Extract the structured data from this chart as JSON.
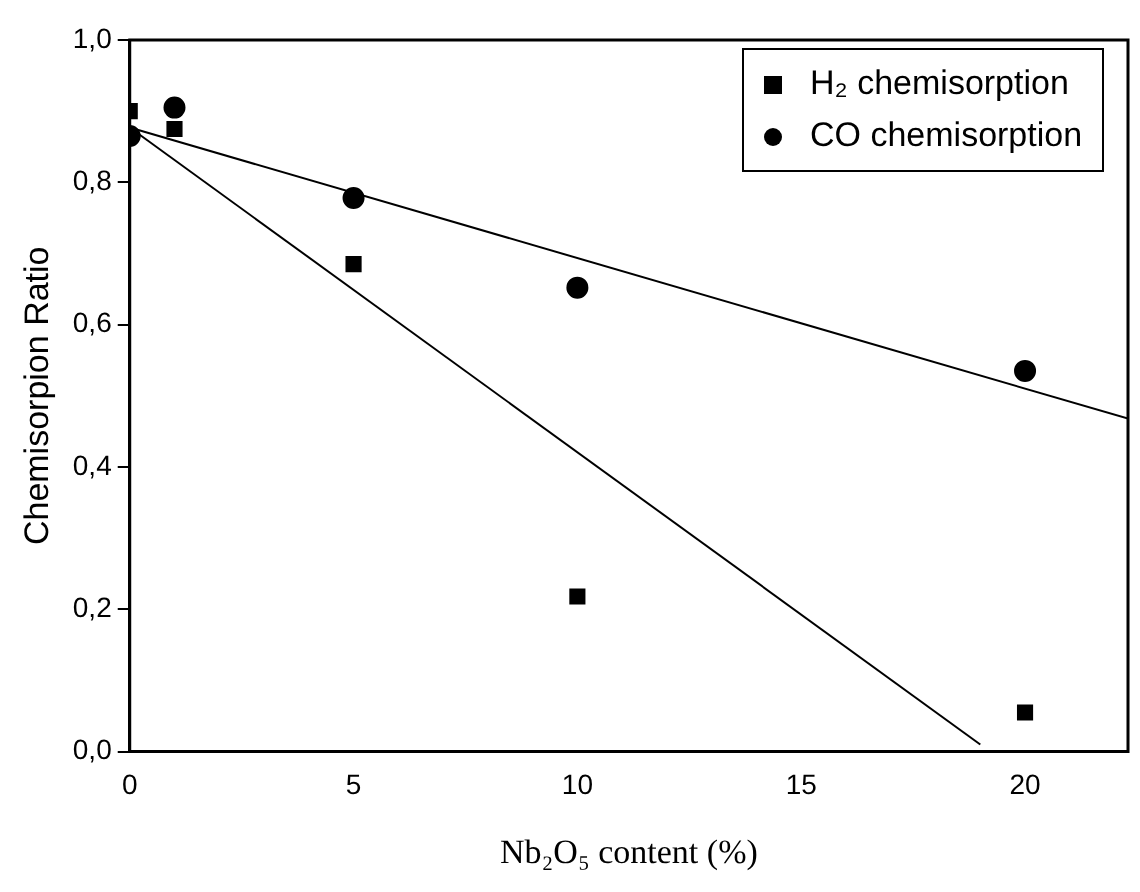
{
  "chart_data": {
    "type": "scatter",
    "xlabel": "Nb₂O₅ content (%)",
    "ylabel": "Chemisorpion Ratio",
    "xlim": [
      0,
      22.3
    ],
    "xticks": [
      0,
      5,
      10,
      15,
      20
    ],
    "ylim": [
      0,
      1
    ],
    "yticks": [
      {
        "value": 0,
        "label": "0,0"
      },
      {
        "value": 0.2,
        "label": "0,2"
      },
      {
        "value": 0.4,
        "label": "0,4"
      },
      {
        "value": 0.6,
        "label": "0,6"
      },
      {
        "value": 0.8,
        "label": "0,8"
      },
      {
        "value": 1,
        "label": "1,0"
      }
    ],
    "grid": false,
    "legend": "top right",
    "series": [
      {
        "name": "H₂ chemisorption",
        "color": "#000000",
        "marker": "square",
        "x": [
          0,
          1,
          5,
          10,
          20
        ],
        "values": [
          0.9,
          0.875,
          0.685,
          0.218,
          0.055
        ]
      },
      {
        "name": "CO chemisorption",
        "color": "#000000",
        "marker": "circle",
        "x": [
          0,
          1,
          5,
          10,
          20
        ],
        "values": [
          0.865,
          0.905,
          0.778,
          0.652,
          0.535
        ]
      },
      {
        "type": "line",
        "color": "#000000",
        "marker": "none",
        "line_style": "solid",
        "x": [
          0,
          19
        ],
        "values": [
          0.877,
          0.01
        ]
      },
      {
        "type": "line",
        "color": "#000000",
        "marker": "none",
        "line_style": "solid",
        "x": [
          0,
          22.3
        ],
        "values": [
          0.877,
          0.468
        ]
      }
    ]
  }
}
